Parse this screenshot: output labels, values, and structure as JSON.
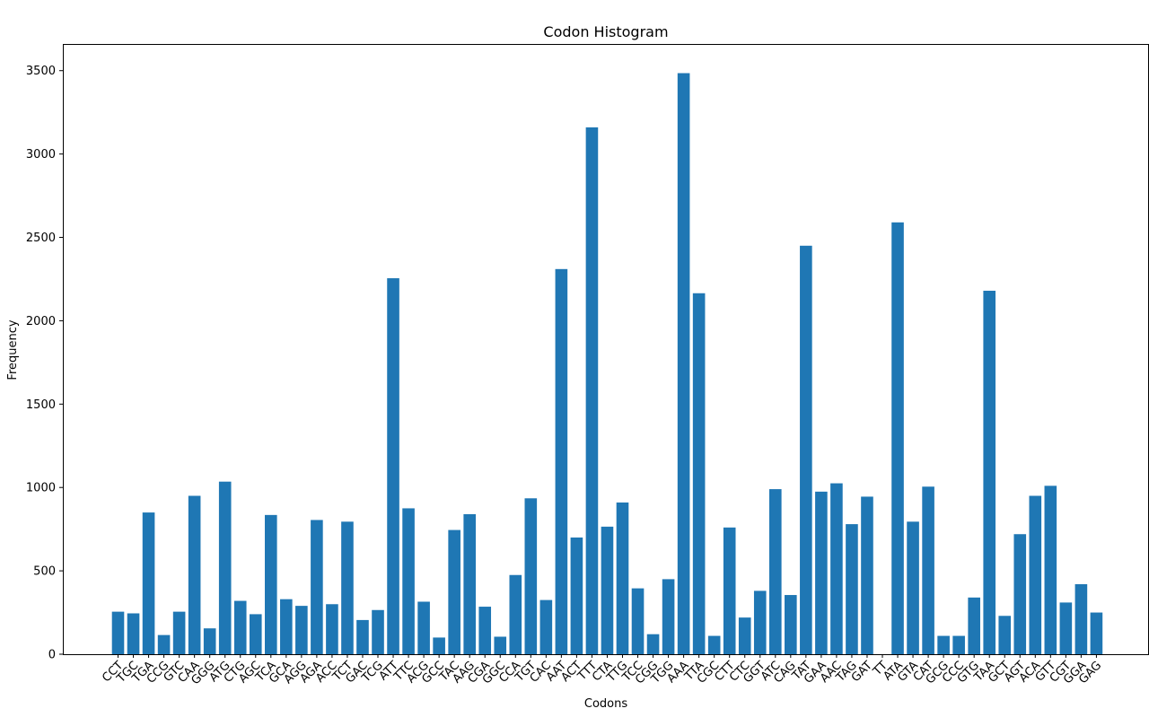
{
  "chart_data": {
    "type": "bar",
    "title": "Codon Histogram",
    "xlabel": "Codons",
    "ylabel": "Frequency",
    "ylim": [
      0,
      3660
    ],
    "yticks": [
      0,
      500,
      1000,
      1500,
      2000,
      2500,
      3000,
      3500
    ],
    "bar_color": "#1f77b4",
    "grid": false,
    "categories": [
      "CCT",
      "TGC",
      "TGA",
      "CCG",
      "GTC",
      "CAA",
      "GGG",
      "ATG",
      "CTG",
      "AGC",
      "TCA",
      "GCA",
      "AGG",
      "AGA",
      "ACC",
      "TCT",
      "GAC",
      "TCG",
      "ATT",
      "TTC",
      "ACG",
      "GCC",
      "TAC",
      "AAG",
      "CGA",
      "GGC",
      "CCA",
      "TGT",
      "CAC",
      "AAT",
      "ACT",
      "TTT",
      "CTA",
      "TTG",
      "TCC",
      "CGG",
      "TGG",
      "AAA",
      "TTA",
      "CGC",
      "CTT",
      "CTC",
      "GGT",
      "ATC",
      "CAG",
      "TAT",
      "GAA",
      "AAC",
      "TAG",
      "GAT",
      "TT",
      "ATA",
      "GTA",
      "CAT",
      "GCG",
      "CCC",
      "GTG",
      "TAA",
      "GCT",
      "AGT",
      "ACA",
      "GTT",
      "CGT",
      "GGA",
      "GAG"
    ],
    "values": [
      255,
      245,
      850,
      115,
      255,
      950,
      155,
      1035,
      320,
      240,
      835,
      330,
      290,
      805,
      300,
      795,
      205,
      265,
      2255,
      875,
      315,
      100,
      745,
      840,
      285,
      105,
      475,
      935,
      325,
      2310,
      700,
      3160,
      765,
      910,
      395,
      120,
      450,
      3485,
      2165,
      110,
      760,
      220,
      380,
      990,
      355,
      2450,
      975,
      1025,
      780,
      945,
      0,
      2590,
      795,
      1005,
      110,
      110,
      340,
      2180,
      230,
      720,
      950,
      1010,
      310,
      420,
      250
    ]
  }
}
